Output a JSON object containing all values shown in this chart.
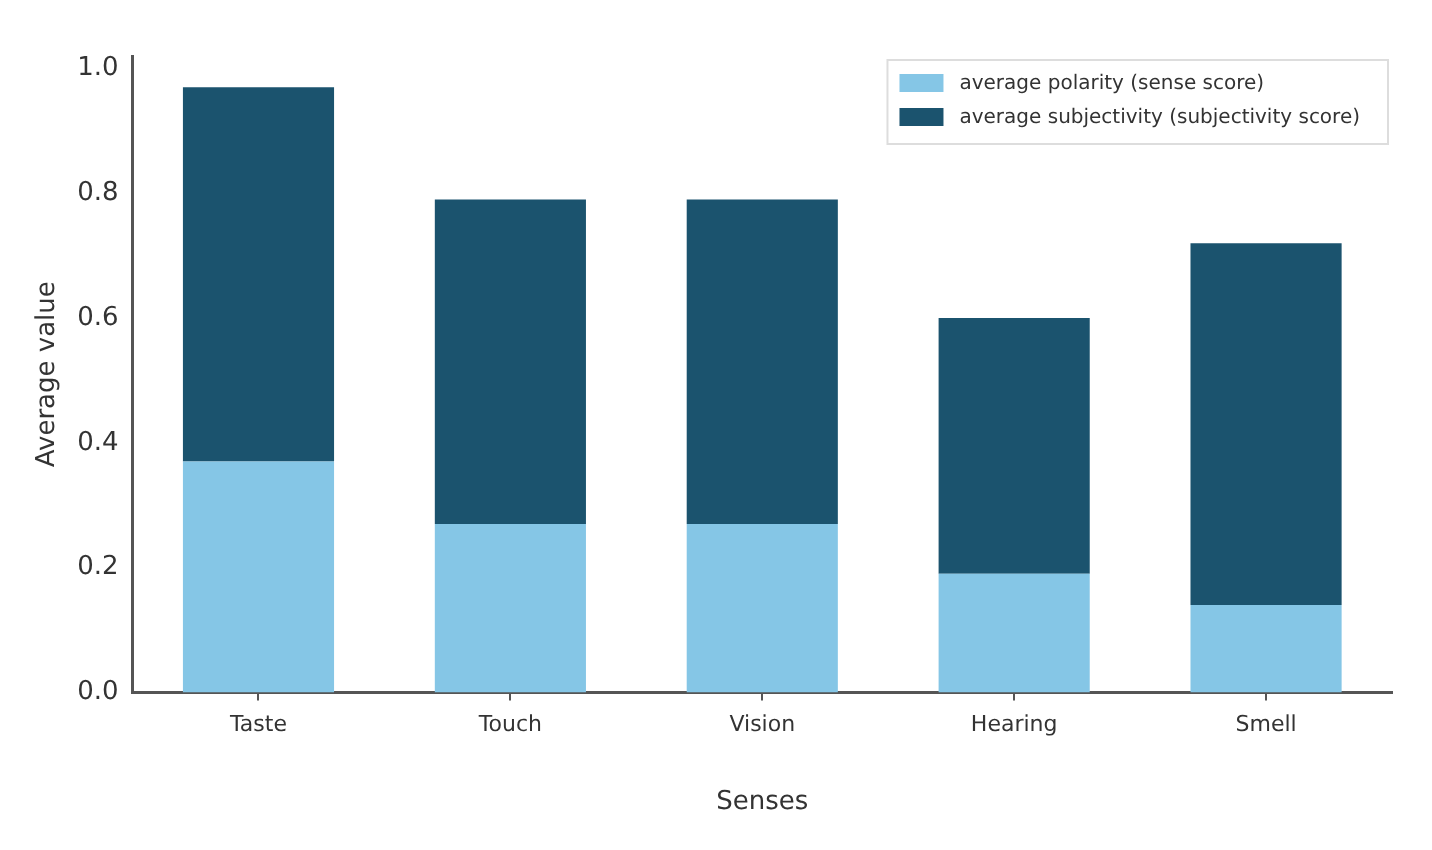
{
  "chart_data": {
    "type": "bar",
    "xlabel": "Senses",
    "ylabel": "Average value",
    "categories": [
      "Taste",
      "Touch",
      "Vision",
      "Hearing",
      "Smell"
    ],
    "series": [
      {
        "name": "average polarity (sense score)",
        "color": "#85c6e6",
        "values": [
          0.37,
          0.27,
          0.27,
          0.19,
          0.14
        ]
      },
      {
        "name": "average subjectivity (subjectivity score)",
        "color": "#1b536e",
        "values": [
          0.6,
          0.52,
          0.52,
          0.41,
          0.58
        ]
      }
    ],
    "stacked": true,
    "ylim": [
      0,
      1.02
    ],
    "yticks": [
      {
        "value": 0,
        "label": "0.0"
      },
      {
        "value": 0.2,
        "label": "0.2"
      },
      {
        "value": 0.4,
        "label": "0.4"
      },
      {
        "value": 0.6,
        "label": "0.6"
      },
      {
        "value": 0.8,
        "label": "0.8"
      },
      {
        "value": 1,
        "label": "1.0"
      }
    ],
    "grid": false,
    "legend": "top right"
  }
}
